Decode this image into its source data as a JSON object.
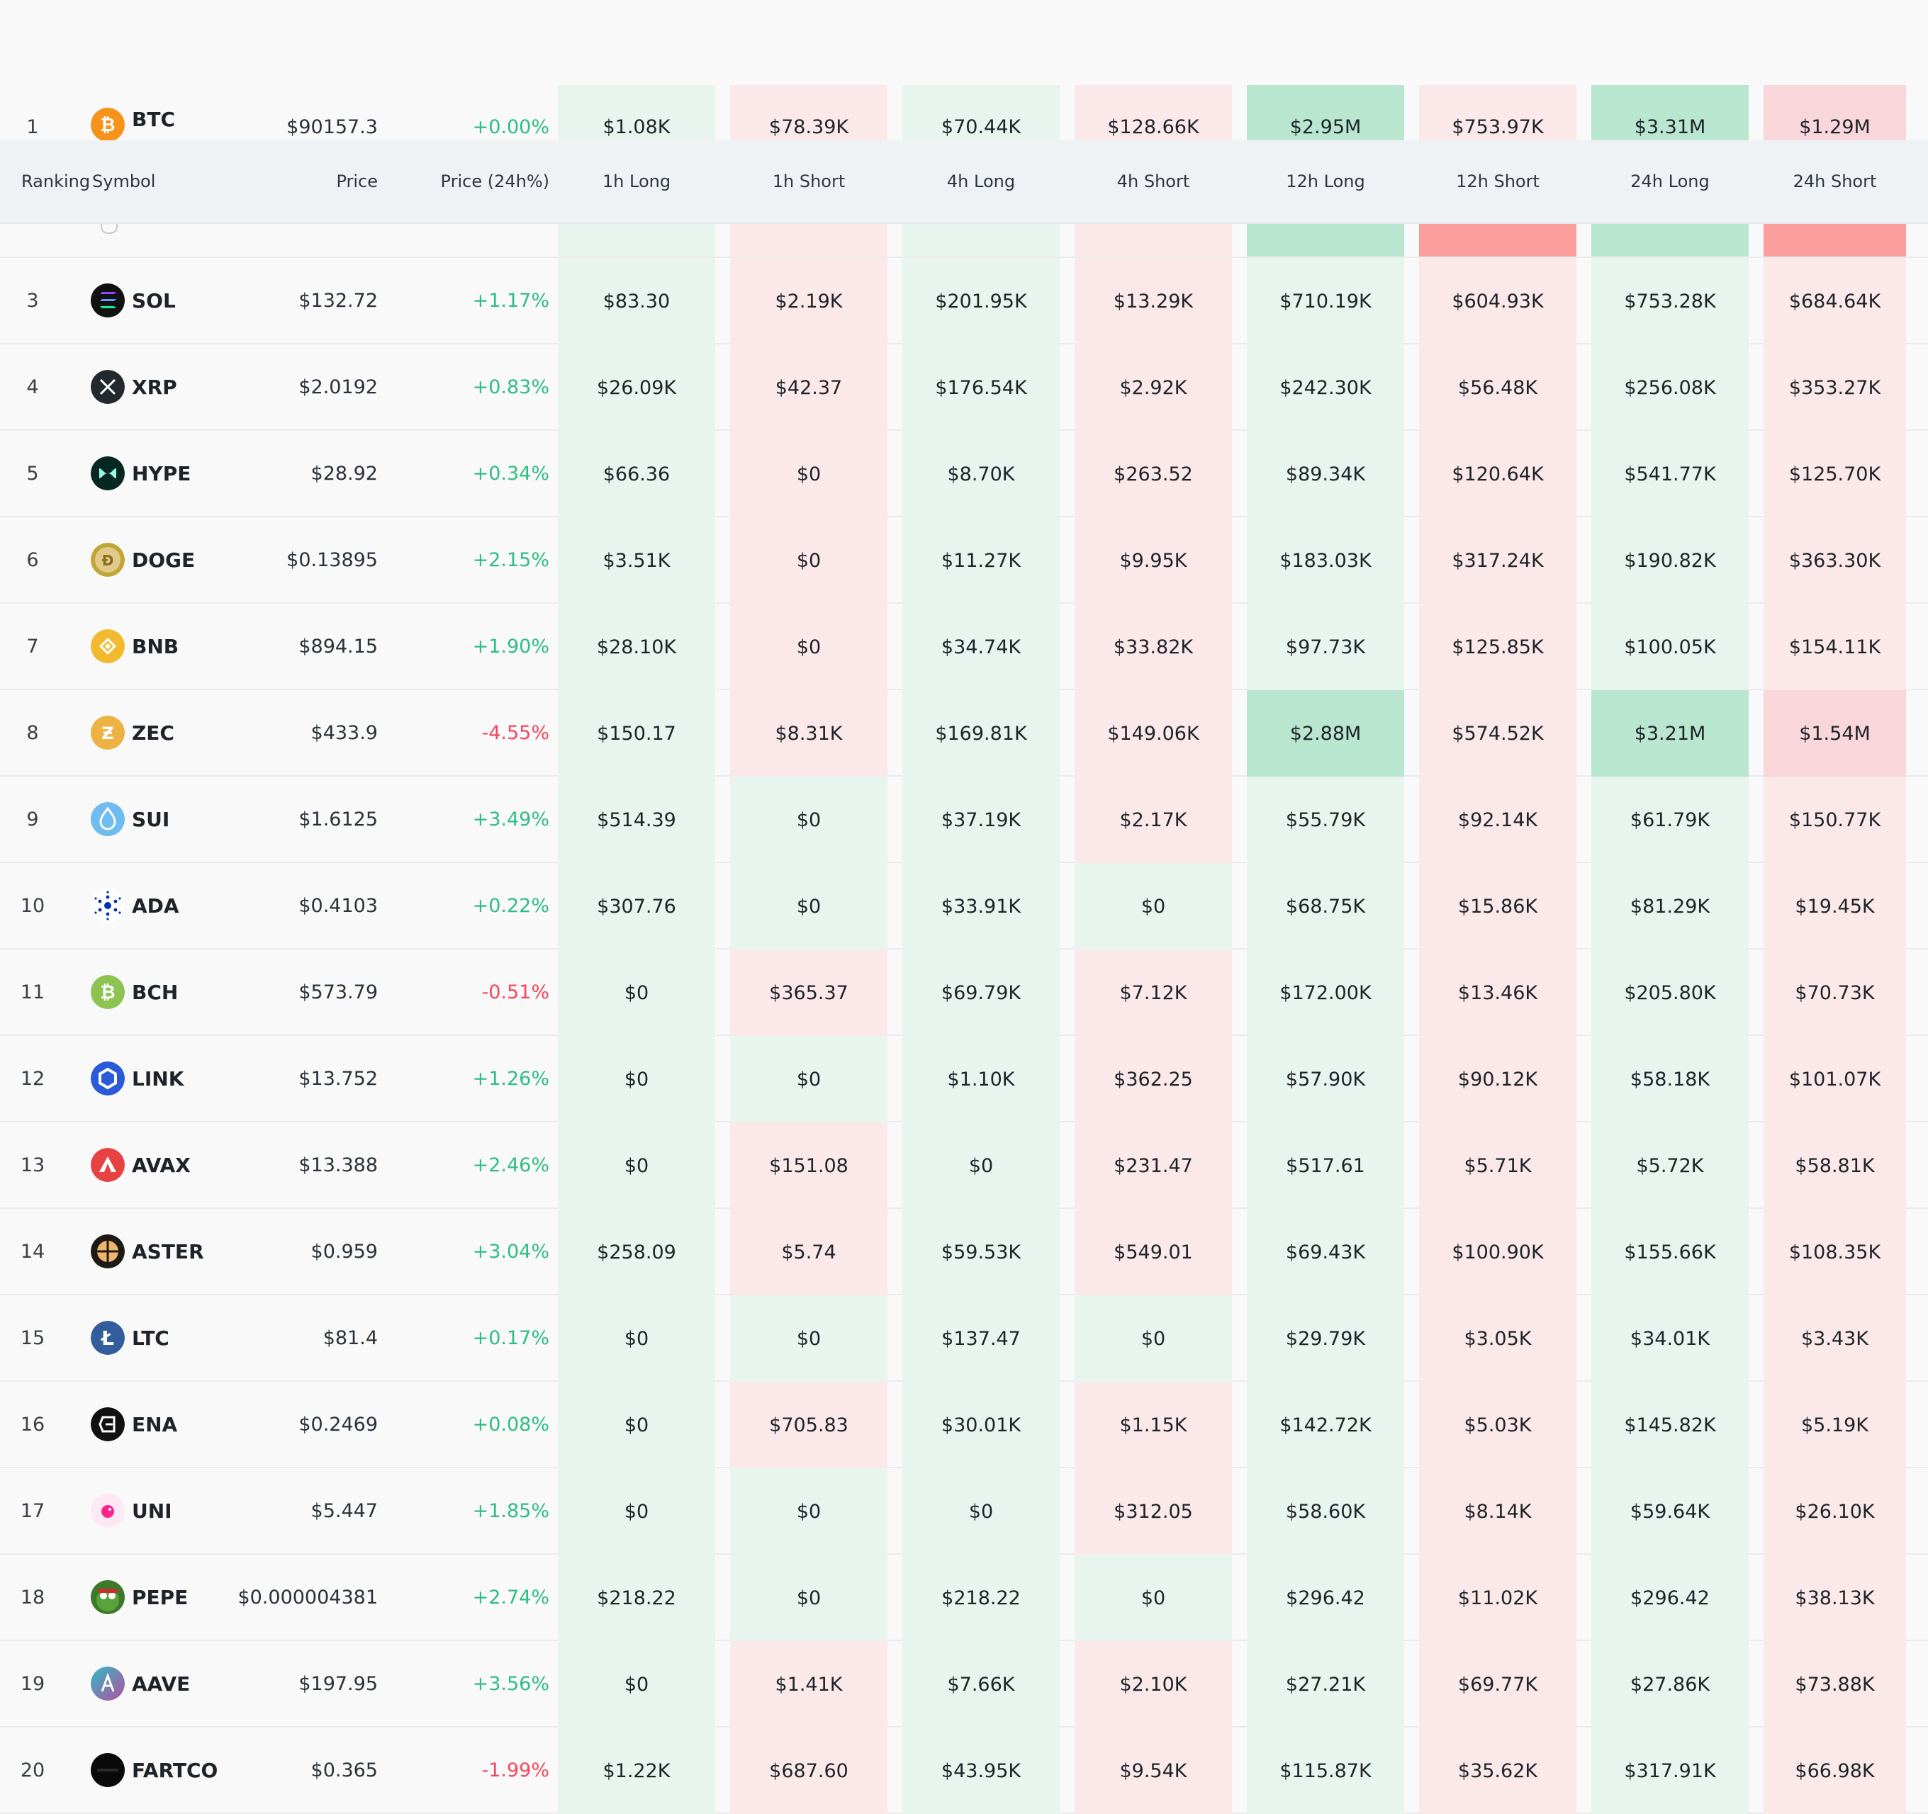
{
  "columns": {
    "ranking": "Ranking",
    "symbol": "Symbol",
    "price": "Price",
    "change": "Price (24h%)",
    "v": [
      "1h Long",
      "1h Short",
      "4h Long",
      "4h Short",
      "12h Long",
      "12h Short",
      "24h Long",
      "24h Short"
    ]
  },
  "colors": {
    "positive_text": "#2ebd85",
    "negative_text": "#f6465d",
    "long_light": "#e8f5ee",
    "long_medium": "#b9e6cf",
    "short_light": "#fbe9e9",
    "short_medium": "#f8d6d9",
    "short_heavy": "#fa9e9e"
  },
  "row2_backgrounds": [
    "gL",
    "rL",
    "gL",
    "rL",
    "gM",
    "rH",
    "gM",
    "rH"
  ],
  "rows": [
    {
      "rank": "1",
      "symbol": "BTC",
      "icon": "bitcoin-icon",
      "price": "$90157.3",
      "change": "+0.00%",
      "dir": "pos",
      "values": [
        "$1.08K",
        "$78.39K",
        "$70.44K",
        "$128.66K",
        "$2.95M",
        "$753.97K",
        "$3.31M",
        "$1.29M"
      ],
      "bg": [
        "gL",
        "rL",
        "gL",
        "rL",
        "gM",
        "rL",
        "gM",
        "rM"
      ]
    },
    {
      "rank": "3",
      "symbol": "SOL",
      "icon": "solana-icon",
      "price": "$132.72",
      "change": "+1.17%",
      "dir": "pos",
      "values": [
        "$83.30",
        "$2.19K",
        "$201.95K",
        "$13.29K",
        "$710.19K",
        "$604.93K",
        "$753.28K",
        "$684.64K"
      ],
      "bg": [
        "gL",
        "rL",
        "gL",
        "rL",
        "gL",
        "rL",
        "gL",
        "rL"
      ]
    },
    {
      "rank": "4",
      "symbol": "XRP",
      "icon": "xrp-icon",
      "price": "$2.0192",
      "change": "+0.83%",
      "dir": "pos",
      "values": [
        "$26.09K",
        "$42.37",
        "$176.54K",
        "$2.92K",
        "$242.30K",
        "$56.48K",
        "$256.08K",
        "$353.27K"
      ],
      "bg": [
        "gL",
        "rL",
        "gL",
        "rL",
        "gL",
        "rL",
        "gL",
        "rL"
      ]
    },
    {
      "rank": "5",
      "symbol": "HYPE",
      "icon": "hyperliquid-icon",
      "price": "$28.92",
      "change": "+0.34%",
      "dir": "pos",
      "values": [
        "$66.36",
        "$0",
        "$8.70K",
        "$263.52",
        "$89.34K",
        "$120.64K",
        "$541.77K",
        "$125.70K"
      ],
      "bg": [
        "gL",
        "rL",
        "gL",
        "rL",
        "gL",
        "rL",
        "gL",
        "rL"
      ]
    },
    {
      "rank": "6",
      "symbol": "DOGE",
      "icon": "dogecoin-icon",
      "price": "$0.13895",
      "change": "+2.15%",
      "dir": "pos",
      "values": [
        "$3.51K",
        "$0",
        "$11.27K",
        "$9.95K",
        "$183.03K",
        "$317.24K",
        "$190.82K",
        "$363.30K"
      ],
      "bg": [
        "gL",
        "rL",
        "gL",
        "rL",
        "gL",
        "rL",
        "gL",
        "rL"
      ]
    },
    {
      "rank": "7",
      "symbol": "BNB",
      "icon": "bnb-icon",
      "price": "$894.15",
      "change": "+1.90%",
      "dir": "pos",
      "values": [
        "$28.10K",
        "$0",
        "$34.74K",
        "$33.82K",
        "$97.73K",
        "$125.85K",
        "$100.05K",
        "$154.11K"
      ],
      "bg": [
        "gL",
        "rL",
        "gL",
        "rL",
        "gL",
        "rL",
        "gL",
        "rL"
      ]
    },
    {
      "rank": "8",
      "symbol": "ZEC",
      "icon": "zcash-icon",
      "price": "$433.9",
      "change": "-4.55%",
      "dir": "neg",
      "values": [
        "$150.17",
        "$8.31K",
        "$169.81K",
        "$149.06K",
        "$2.88M",
        "$574.52K",
        "$3.21M",
        "$1.54M"
      ],
      "bg": [
        "gL",
        "rL",
        "gL",
        "rL",
        "gM",
        "rL",
        "gM",
        "rM"
      ]
    },
    {
      "rank": "9",
      "symbol": "SUI",
      "icon": "sui-icon",
      "price": "$1.6125",
      "change": "+3.49%",
      "dir": "pos",
      "values": [
        "$514.39",
        "$0",
        "$37.19K",
        "$2.17K",
        "$55.79K",
        "$92.14K",
        "$61.79K",
        "$150.77K"
      ],
      "bg": [
        "gL",
        "gL",
        "gL",
        "rL",
        "gL",
        "rL",
        "gL",
        "rL"
      ]
    },
    {
      "rank": "10",
      "symbol": "ADA",
      "icon": "cardano-icon",
      "price": "$0.4103",
      "change": "+0.22%",
      "dir": "pos",
      "values": [
        "$307.76",
        "$0",
        "$33.91K",
        "$0",
        "$68.75K",
        "$15.86K",
        "$81.29K",
        "$19.45K"
      ],
      "bg": [
        "gL",
        "gL",
        "gL",
        "gL",
        "gL",
        "rL",
        "gL",
        "rL"
      ]
    },
    {
      "rank": "11",
      "symbol": "BCH",
      "icon": "bitcoin-cash-icon",
      "price": "$573.79",
      "change": "-0.51%",
      "dir": "neg",
      "values": [
        "$0",
        "$365.37",
        "$69.79K",
        "$7.12K",
        "$172.00K",
        "$13.46K",
        "$205.80K",
        "$70.73K"
      ],
      "bg": [
        "gL",
        "rL",
        "gL",
        "rL",
        "gL",
        "rL",
        "gL",
        "rL"
      ]
    },
    {
      "rank": "12",
      "symbol": "LINK",
      "icon": "chainlink-icon",
      "price": "$13.752",
      "change": "+1.26%",
      "dir": "pos",
      "values": [
        "$0",
        "$0",
        "$1.10K",
        "$362.25",
        "$57.90K",
        "$90.12K",
        "$58.18K",
        "$101.07K"
      ],
      "bg": [
        "gL",
        "gL",
        "gL",
        "rL",
        "gL",
        "rL",
        "gL",
        "rL"
      ]
    },
    {
      "rank": "13",
      "symbol": "AVAX",
      "icon": "avalanche-icon",
      "price": "$13.388",
      "change": "+2.46%",
      "dir": "pos",
      "values": [
        "$0",
        "$151.08",
        "$0",
        "$231.47",
        "$517.61",
        "$5.71K",
        "$5.72K",
        "$58.81K"
      ],
      "bg": [
        "gL",
        "rL",
        "gL",
        "rL",
        "gL",
        "rL",
        "gL",
        "rL"
      ]
    },
    {
      "rank": "14",
      "symbol": "ASTER",
      "icon": "aster-icon",
      "price": "$0.959",
      "change": "+3.04%",
      "dir": "pos",
      "values": [
        "$258.09",
        "$5.74",
        "$59.53K",
        "$549.01",
        "$69.43K",
        "$100.90K",
        "$155.66K",
        "$108.35K"
      ],
      "bg": [
        "gL",
        "rL",
        "gL",
        "rL",
        "gL",
        "rL",
        "gL",
        "rL"
      ]
    },
    {
      "rank": "15",
      "symbol": "LTC",
      "icon": "litecoin-icon",
      "price": "$81.4",
      "change": "+0.17%",
      "dir": "pos",
      "values": [
        "$0",
        "$0",
        "$137.47",
        "$0",
        "$29.79K",
        "$3.05K",
        "$34.01K",
        "$3.43K"
      ],
      "bg": [
        "gL",
        "gL",
        "gL",
        "gL",
        "gL",
        "rL",
        "gL",
        "rL"
      ]
    },
    {
      "rank": "16",
      "symbol": "ENA",
      "icon": "ethena-icon",
      "price": "$0.2469",
      "change": "+0.08%",
      "dir": "pos",
      "values": [
        "$0",
        "$705.83",
        "$30.01K",
        "$1.15K",
        "$142.72K",
        "$5.03K",
        "$145.82K",
        "$5.19K"
      ],
      "bg": [
        "gL",
        "rL",
        "gL",
        "rL",
        "gL",
        "rL",
        "gL",
        "rL"
      ]
    },
    {
      "rank": "17",
      "symbol": "UNI",
      "icon": "uniswap-icon",
      "price": "$5.447",
      "change": "+1.85%",
      "dir": "pos",
      "values": [
        "$0",
        "$0",
        "$0",
        "$312.05",
        "$58.60K",
        "$8.14K",
        "$59.64K",
        "$26.10K"
      ],
      "bg": [
        "gL",
        "gL",
        "gL",
        "rL",
        "gL",
        "rL",
        "gL",
        "rL"
      ]
    },
    {
      "rank": "18",
      "symbol": "PEPE",
      "icon": "pepe-icon",
      "price": "$0.000004381",
      "change": "+2.74%",
      "dir": "pos",
      "values": [
        "$218.22",
        "$0",
        "$218.22",
        "$0",
        "$296.42",
        "$11.02K",
        "$296.42",
        "$38.13K"
      ],
      "bg": [
        "gL",
        "gL",
        "gL",
        "gL",
        "gL",
        "rL",
        "gL",
        "rL"
      ]
    },
    {
      "rank": "19",
      "symbol": "AAVE",
      "icon": "aave-icon",
      "price": "$197.95",
      "change": "+3.56%",
      "dir": "pos",
      "values": [
        "$0",
        "$1.41K",
        "$7.66K",
        "$2.10K",
        "$27.21K",
        "$69.77K",
        "$27.86K",
        "$73.88K"
      ],
      "bg": [
        "gL",
        "rL",
        "gL",
        "rL",
        "gL",
        "rL",
        "gL",
        "rL"
      ]
    },
    {
      "rank": "20",
      "symbol": "FARTCO",
      "icon": "fartcoin-icon",
      "price": "$0.365",
      "change": "-1.99%",
      "dir": "neg",
      "values": [
        "$1.22K",
        "$687.60",
        "$43.95K",
        "$9.54K",
        "$115.87K",
        "$35.62K",
        "$317.91K",
        "$66.98K"
      ],
      "bg": [
        "gL",
        "rL",
        "gL",
        "rL",
        "gL",
        "rL",
        "gL",
        "rL"
      ]
    }
  ]
}
